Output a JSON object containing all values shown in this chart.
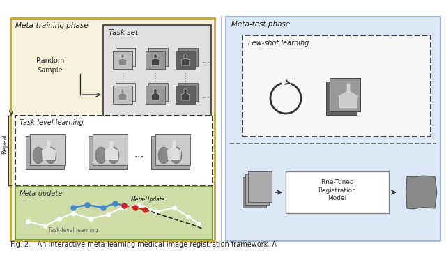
{
  "bg_color": "#ffffff",
  "left_panel_bg": "#f7f2dc",
  "left_panel_border": "#c8a832",
  "right_panel_bg": "#dce8f5",
  "right_panel_border": "#9ab8d8",
  "task_set_box_bg": "#e0e0e0",
  "task_set_box_border": "#555555",
  "task_level_box_bg": "#ffffff",
  "task_level_box_border": "#333333",
  "meta_update_box_bg": "#cfdda8",
  "meta_update_box_border": "#7a9a40",
  "few_shot_box_bg": "#ffffff",
  "few_shot_box_border": "#333333",
  "repeat_label": "Repeat",
  "random_sample_label": "Random\nSample",
  "task_set_label": "Task set",
  "task_level_label": "Task-level learning",
  "meta_update_label": "Meta-update",
  "meta_test_label": "Meta-test phase",
  "meta_train_label": "Meta-training phase",
  "few_shot_label": "Few-shot learning",
  "fine_tuned_label": "Fine-Tuned\nRegistration\nModel",
  "meta_update_curve_label": "Meta-Update",
  "task_level_curve_label": "Task-level learning",
  "fig_caption": "Fig. 2.   An interactive meta-learning medical image registration framework. A",
  "blue_line_color": "#4488cc",
  "red_dot_color": "#cc2222",
  "icon_dark": "#666666",
  "icon_mid": "#888888",
  "icon_light": "#aaaaaa"
}
